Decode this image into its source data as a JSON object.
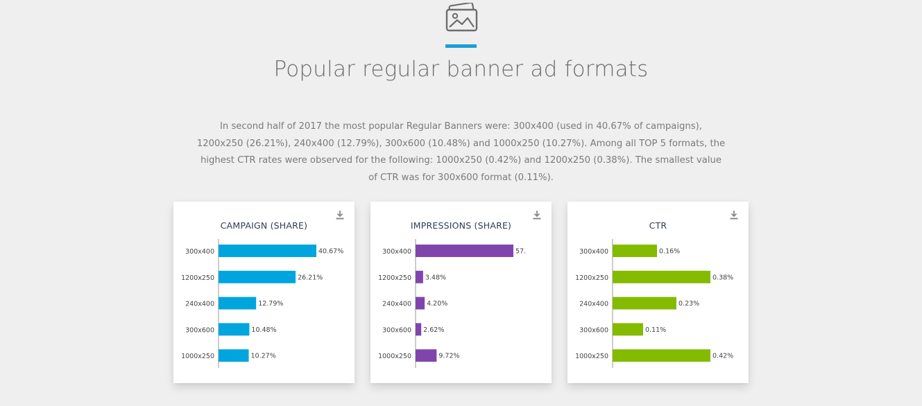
{
  "header": {
    "icon": "image-gallery-icon",
    "title": "Popular regular banner ad formats",
    "accent_color": "#1a9fd9"
  },
  "intro": {
    "text": "In second half of 2017 the most popular Regular Banners were: 300x400 (used in 40.67% of campaigns), 1200x250 (26.21%), 240x400 (12.79%), 300x600 (10.48%) and 1000x250 (10.27%). Among all TOP 5 formats, the highest CTR rates were observed for the following: 1000x250 (0.42%) and 1200x250 (0.38%). The smallest value of CTR was for 300x600 format (0.11%)."
  },
  "cards": [
    {
      "title": "CAMPAIGN (SHARE)",
      "download_icon": "download-icon"
    },
    {
      "title": "IMPRESSIONS (SHARE)",
      "download_icon": "download-icon"
    },
    {
      "title": "CTR",
      "download_icon": "download-icon"
    }
  ],
  "chart_data": [
    {
      "type": "bar",
      "orientation": "horizontal",
      "title": "CAMPAIGN (SHARE)",
      "categories": [
        "300x400",
        "1200x250",
        "240x400",
        "300x600",
        "1000x250"
      ],
      "values": [
        40.67,
        26.21,
        12.79,
        10.48,
        10.27
      ],
      "labels": [
        "40.67%",
        "26.21%",
        "12.79%",
        "10.48%",
        "10.27%"
      ],
      "color": "#00a5de",
      "xlim": [
        0,
        42
      ]
    },
    {
      "type": "bar",
      "orientation": "horizontal",
      "title": "IMPRESSIONS (SHARE)",
      "categories": [
        "300x400",
        "1200x250",
        "240x400",
        "300x600",
        "1000x250"
      ],
      "values": [
        57,
        3.48,
        4.2,
        2.62,
        9.72
      ],
      "labels": [
        "57.",
        "3.48%",
        "4.20%",
        "2.62%",
        "9.72%"
      ],
      "color": "#7f45ad",
      "xlim": [
        0,
        57
      ]
    },
    {
      "type": "bar",
      "orientation": "horizontal",
      "title": "CTR",
      "categories": [
        "300x400",
        "1200x250",
        "240x400",
        "300x600",
        "1000x250"
      ],
      "values": [
        0.16,
        0.38,
        0.23,
        0.11,
        0.42
      ],
      "labels": [
        "0.16%",
        "0.38%",
        "0.23%",
        "0.11%",
        "0.42%"
      ],
      "color": "#84bb00",
      "xlim": [
        0,
        0.445
      ]
    }
  ]
}
